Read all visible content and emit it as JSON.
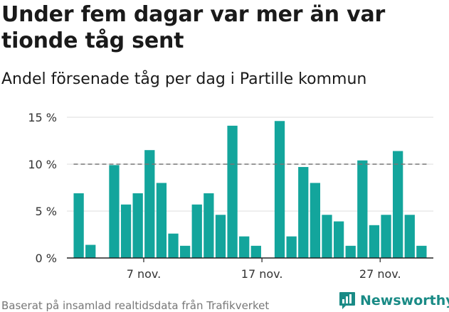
{
  "chart_data": {
    "type": "bar",
    "title": "Under fem dagar var mer än var tionde tåg sent",
    "subtitle": "Andel försenade tåg per dag i Partille kommun",
    "ylim": [
      0,
      15
    ],
    "yticks": [
      0,
      5,
      10,
      15
    ],
    "ytick_labels": [
      "0 %",
      "5 %",
      "10 %",
      "15 %"
    ],
    "x_range": [
      0,
      31
    ],
    "xticks": [
      6.5,
      16.5,
      26.5
    ],
    "xtick_labels": [
      "7 nov.",
      "17 nov.",
      "27 nov."
    ],
    "x": [
      1,
      2,
      3,
      4,
      5,
      6,
      7,
      8,
      9,
      10,
      11,
      12,
      13,
      14,
      15,
      16,
      17,
      18,
      19,
      20,
      21,
      22,
      23,
      24,
      25,
      26,
      27,
      28,
      29,
      30
    ],
    "values": [
      6.9,
      1.4,
      null,
      9.9,
      5.7,
      6.9,
      11.5,
      8.0,
      2.6,
      1.3,
      5.7,
      6.9,
      4.6,
      14.1,
      2.3,
      1.3,
      null,
      14.6,
      2.3,
      9.7,
      8.0,
      4.6,
      3.9,
      1.3,
      10.4,
      3.5,
      4.6,
      11.4,
      4.6,
      1.3
    ],
    "reference_line": 10,
    "grid": true,
    "colors": {
      "bar": "#13a59c",
      "grid": "#dcdcdc",
      "reference": "#777777",
      "axis": "#222222"
    }
  },
  "source": "Baserat på insamlad realtidsdata från Trafikverket",
  "brand": {
    "name": "Newsworthy",
    "icon": "newsworthy-logo-icon",
    "color": "#1a8b86"
  }
}
